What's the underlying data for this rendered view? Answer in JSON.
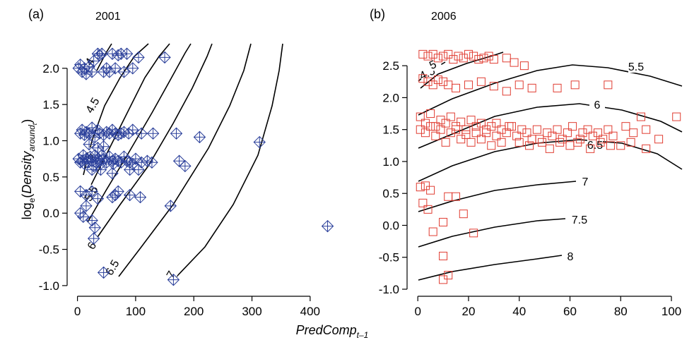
{
  "figure": {
    "xlabel_main": "PredComp",
    "xlabel_sub": "t–1",
    "ylabel_pre": "log",
    "ylabel_e": "e",
    "ylabel_open": "(",
    "ylabel_main": "Density",
    "ylabel_sub": "around",
    "ylabel_subsub": "t",
    "ylabel_close": ")"
  },
  "chart_data": [
    {
      "type": "scatter",
      "panel_label": "(a)",
      "title": "2001",
      "marker": "diamond-cross",
      "color": "#2a3f9a",
      "xlim": [
        -8,
        450
      ],
      "ylim": [
        -1.05,
        2.3
      ],
      "x_ticks": [
        0,
        100,
        200,
        300,
        400
      ],
      "y_ticks": [
        -1.0,
        -0.5,
        0.0,
        0.5,
        1.0,
        1.5,
        2.0
      ],
      "y_tick_labels": [
        "-1.0",
        "-0.5",
        "0.0",
        "0.5",
        "1.0",
        "1.5",
        "2.0"
      ],
      "grid": false,
      "points": [
        [
          2,
          2.0
        ],
        [
          5,
          2.05
        ],
        [
          8,
          1.95
        ],
        [
          12,
          2.0
        ],
        [
          15,
          1.92
        ],
        [
          20,
          2.02
        ],
        [
          25,
          1.95
        ],
        [
          28,
          2.1
        ],
        [
          35,
          2.2
        ],
        [
          38,
          2.18
        ],
        [
          42,
          2.2
        ],
        [
          45,
          1.95
        ],
        [
          50,
          2.0
        ],
        [
          55,
          1.95
        ],
        [
          60,
          2.2
        ],
        [
          65,
          2.0
        ],
        [
          70,
          2.18
        ],
        [
          75,
          2.2
        ],
        [
          80,
          1.95
        ],
        [
          85,
          2.2
        ],
        [
          95,
          2.0
        ],
        [
          105,
          2.15
        ],
        [
          150,
          2.15
        ],
        [
          5,
          1.1
        ],
        [
          8,
          1.15
        ],
        [
          12,
          1.08
        ],
        [
          15,
          1.12
        ],
        [
          20,
          1.1
        ],
        [
          25,
          1.18
        ],
        [
          30,
          1.05
        ],
        [
          35,
          1.15
        ],
        [
          38,
          1.1
        ],
        [
          45,
          1.08
        ],
        [
          50,
          1.12
        ],
        [
          55,
          1.1
        ],
        [
          60,
          1.15
        ],
        [
          65,
          1.1
        ],
        [
          70,
          1.08
        ],
        [
          75,
          1.1
        ],
        [
          80,
          1.12
        ],
        [
          88,
          1.1
        ],
        [
          95,
          1.15
        ],
        [
          110,
          1.1
        ],
        [
          130,
          1.1
        ],
        [
          170,
          1.1
        ],
        [
          210,
          1.05
        ],
        [
          2,
          0.75
        ],
        [
          5,
          0.7
        ],
        [
          8,
          0.72
        ],
        [
          10,
          0.8
        ],
        [
          12,
          0.68
        ],
        [
          15,
          0.75
        ],
        [
          18,
          0.7
        ],
        [
          22,
          0.78
        ],
        [
          25,
          0.72
        ],
        [
          28,
          0.65
        ],
        [
          30,
          0.8
        ],
        [
          32,
          0.7
        ],
        [
          35,
          0.75
        ],
        [
          38,
          0.72
        ],
        [
          40,
          0.68
        ],
        [
          42,
          0.8
        ],
        [
          45,
          0.75
        ],
        [
          50,
          0.7
        ],
        [
          55,
          0.78
        ],
        [
          60,
          0.72
        ],
        [
          62,
          0.68
        ],
        [
          65,
          0.75
        ],
        [
          70,
          0.72
        ],
        [
          75,
          0.7
        ],
        [
          80,
          0.78
        ],
        [
          85,
          0.72
        ],
        [
          90,
          0.7
        ],
        [
          95,
          0.68
        ],
        [
          100,
          0.75
        ],
        [
          105,
          0.6
        ],
        [
          110,
          0.7
        ],
        [
          120,
          0.72
        ],
        [
          128,
          0.7
        ],
        [
          175,
          0.72
        ],
        [
          185,
          0.65
        ],
        [
          20,
          0.95
        ],
        [
          35,
          0.9
        ],
        [
          45,
          0.92
        ],
        [
          25,
          0.6
        ],
        [
          40,
          0.6
        ],
        [
          60,
          0.55
        ],
        [
          90,
          0.6
        ],
        [
          5,
          0.3
        ],
        [
          15,
          0.25
        ],
        [
          25,
          0.3
        ],
        [
          35,
          0.2
        ],
        [
          60,
          0.22
        ],
        [
          65,
          0.25
        ],
        [
          70,
          0.3
        ],
        [
          90,
          0.25
        ],
        [
          108,
          0.22
        ],
        [
          5,
          0.0
        ],
        [
          10,
          -0.05
        ],
        [
          15,
          0.1
        ],
        [
          25,
          -0.1
        ],
        [
          30,
          -0.2
        ],
        [
          160,
          0.1
        ],
        [
          28,
          -0.35
        ],
        [
          45,
          -0.82
        ],
        [
          165,
          -0.92
        ],
        [
          313,
          0.98
        ],
        [
          430,
          -0.18
        ]
      ],
      "contours": [
        {
          "label": "4"
        },
        {
          "label": "4.5"
        },
        {
          "label": "5"
        },
        {
          "label": "5.5"
        },
        {
          "label": "6"
        },
        {
          "label": "6.5"
        },
        {
          "label": "7"
        }
      ]
    },
    {
      "type": "scatter",
      "panel_label": "(b)",
      "title": "2006",
      "marker": "square",
      "color": "#e03c31",
      "xlim": [
        -2,
        105
      ],
      "ylim": [
        -1.0,
        2.8
      ],
      "x_ticks": [
        0,
        20,
        40,
        60,
        80,
        100
      ],
      "y_ticks": [
        -1.0,
        -0.5,
        0.0,
        0.5,
        1.0,
        1.5,
        2.0,
        2.5
      ],
      "y_tick_labels": [
        "-1.0",
        "-0.5",
        "0.0",
        "0.5",
        "1.0",
        "1.5",
        "2.0",
        "2.5"
      ],
      "grid": false,
      "points": [
        [
          2,
          2.68
        ],
        [
          4,
          2.65
        ],
        [
          6,
          2.68
        ],
        [
          8,
          2.62
        ],
        [
          10,
          2.65
        ],
        [
          12,
          2.68
        ],
        [
          14,
          2.6
        ],
        [
          16,
          2.65
        ],
        [
          18,
          2.62
        ],
        [
          20,
          2.68
        ],
        [
          22,
          2.65
        ],
        [
          24,
          2.6
        ],
        [
          26,
          2.62
        ],
        [
          28,
          2.65
        ],
        [
          30,
          2.6
        ],
        [
          35,
          2.62
        ],
        [
          38,
          2.55
        ],
        [
          42,
          2.5
        ],
        [
          2,
          2.3
        ],
        [
          4,
          2.25
        ],
        [
          6,
          2.2
        ],
        [
          8,
          2.28
        ],
        [
          10,
          2.25
        ],
        [
          12,
          2.2
        ],
        [
          15,
          2.15
        ],
        [
          20,
          2.2
        ],
        [
          25,
          2.25
        ],
        [
          30,
          2.18
        ],
        [
          35,
          2.1
        ],
        [
          40,
          2.2
        ],
        [
          45,
          2.15
        ],
        [
          55,
          2.15
        ],
        [
          62,
          2.2
        ],
        [
          75,
          2.2
        ],
        [
          1,
          1.7
        ],
        [
          3,
          1.6
        ],
        [
          5,
          1.75
        ],
        [
          7,
          1.55
        ],
        [
          9,
          1.65
        ],
        [
          11,
          1.6
        ],
        [
          13,
          1.7
        ],
        [
          15,
          1.55
        ],
        [
          17,
          1.62
        ],
        [
          19,
          1.5
        ],
        [
          21,
          1.65
        ],
        [
          23,
          1.55
        ],
        [
          25,
          1.6
        ],
        [
          27,
          1.45
        ],
        [
          29,
          1.55
        ],
        [
          31,
          1.6
        ],
        [
          33,
          1.5
        ],
        [
          35,
          1.45
        ],
        [
          37,
          1.55
        ],
        [
          39,
          1.4
        ],
        [
          41,
          1.5
        ],
        [
          43,
          1.45
        ],
        [
          45,
          1.35
        ],
        [
          47,
          1.5
        ],
        [
          49,
          1.3
        ],
        [
          51,
          1.45
        ],
        [
          53,
          1.4
        ],
        [
          55,
          1.5
        ],
        [
          57,
          1.35
        ],
        [
          59,
          1.45
        ],
        [
          61,
          1.55
        ],
        [
          63,
          1.3
        ],
        [
          65,
          1.45
        ],
        [
          67,
          1.5
        ],
        [
          69,
          1.4
        ],
        [
          71,
          1.45
        ],
        [
          73,
          1.35
        ],
        [
          75,
          1.5
        ],
        [
          77,
          1.4
        ],
        [
          80,
          1.25
        ],
        [
          82,
          1.55
        ],
        [
          85,
          1.45
        ],
        [
          88,
          1.7
        ],
        [
          90,
          1.5
        ],
        [
          95,
          1.35
        ],
        [
          102,
          1.7
        ],
        [
          1,
          1.5
        ],
        [
          3,
          1.45
        ],
        [
          5,
          1.55
        ],
        [
          7,
          1.4
        ],
        [
          9,
          1.5
        ],
        [
          11,
          1.3
        ],
        [
          13,
          1.45
        ],
        [
          15,
          1.5
        ],
        [
          17,
          1.35
        ],
        [
          19,
          1.42
        ],
        [
          21,
          1.3
        ],
        [
          23,
          1.45
        ],
        [
          25,
          1.35
        ],
        [
          27,
          1.5
        ],
        [
          29,
          1.25
        ],
        [
          31,
          1.4
        ],
        [
          33,
          1.3
        ],
        [
          36,
          1.55
        ],
        [
          40,
          1.3
        ],
        [
          44,
          1.25
        ],
        [
          48,
          1.35
        ],
        [
          52,
          1.2
        ],
        [
          56,
          1.3
        ],
        [
          60,
          1.25
        ],
        [
          64,
          1.35
        ],
        [
          68,
          1.2
        ],
        [
          72,
          1.3
        ],
        [
          76,
          1.25
        ],
        [
          84,
          1.3
        ],
        [
          90,
          1.2
        ],
        [
          1,
          0.6
        ],
        [
          3,
          0.62
        ],
        [
          5,
          0.55
        ],
        [
          2,
          0.35
        ],
        [
          4,
          0.25
        ],
        [
          12,
          0.45
        ],
        [
          15,
          0.45
        ],
        [
          18,
          0.18
        ],
        [
          6,
          -0.1
        ],
        [
          10,
          -0.48
        ],
        [
          12,
          -0.78
        ],
        [
          10,
          -0.85
        ],
        [
          22,
          -0.12
        ],
        [
          10,
          0.05
        ]
      ],
      "contours": [
        {
          "label": "4.5"
        },
        {
          "label": "5"
        },
        {
          "label": "5.5"
        },
        {
          "label": "6"
        },
        {
          "label": "6.5"
        },
        {
          "label": "7"
        },
        {
          "label": "7.5"
        },
        {
          "label": "8"
        }
      ]
    }
  ]
}
